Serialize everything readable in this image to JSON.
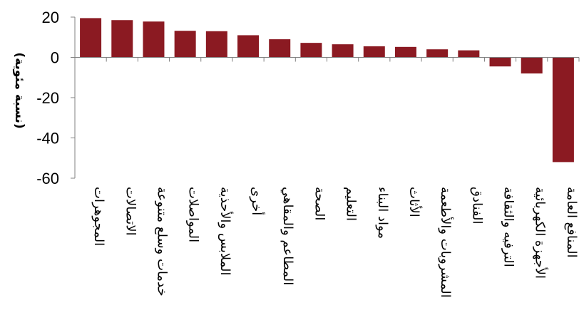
{
  "chart_data": {
    "type": "bar",
    "ylabel": "(نسبة مئوية)",
    "ylim": [
      -60,
      20
    ],
    "yticks": [
      20,
      0,
      -20,
      -40,
      -60
    ],
    "grid": false,
    "bar_color": "#8B1A22",
    "categories": [
      "المجوهرات",
      "الاتصالات",
      "خدمات وسلع متنوعة",
      "المواصلات",
      "الملابس والأحذية",
      "أخرى",
      "المطاعم والمقاهي",
      "الصحة",
      "التعليم",
      "مواد البناء",
      "الأثاث",
      "المشروبات والأطعمة",
      "الفنادق",
      "الترفيه والثقافة",
      "الأجهزة الكهربائية",
      "المنافع العامة"
    ],
    "values": [
      19.5,
      18.5,
      17.8,
      13.2,
      13.0,
      11.0,
      9.0,
      7.2,
      6.5,
      5.5,
      5.2,
      4.0,
      3.5,
      -4.5,
      -8.0,
      -52.0
    ]
  }
}
